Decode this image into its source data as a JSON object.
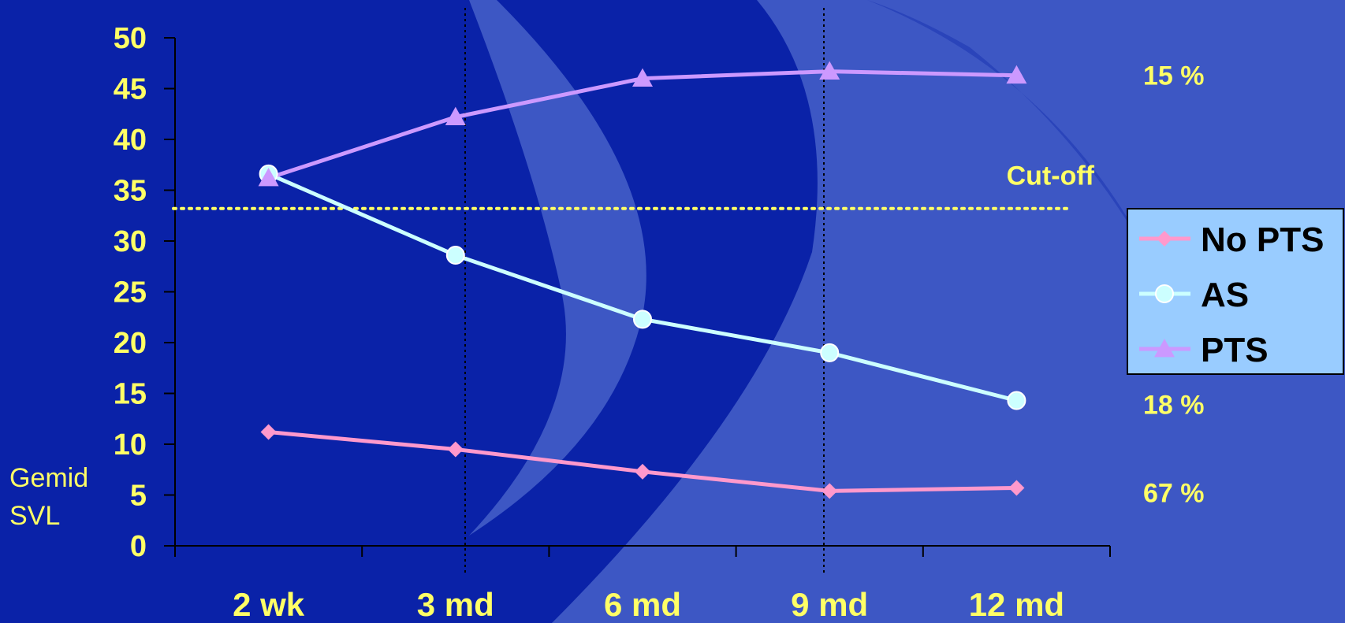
{
  "chart_data": {
    "type": "line",
    "categories": [
      "2 wk",
      "3 md",
      "6 md",
      "9 md",
      "12 md"
    ],
    "ylim": [
      0,
      50
    ],
    "yticks": [
      0,
      5,
      10,
      15,
      20,
      25,
      30,
      35,
      40,
      45,
      50
    ],
    "ylabel": [
      "Gemid",
      "SVL"
    ],
    "series": [
      {
        "name": "No PTS",
        "values": [
          11.2,
          9.5,
          7.3,
          5.4,
          5.7
        ],
        "color": "#ff99cc",
        "marker": "diamond"
      },
      {
        "name": "AS",
        "values": [
          36.6,
          28.6,
          22.3,
          19.0,
          14.3
        ],
        "color": "#ccffff",
        "marker": "circle"
      },
      {
        "name": "PTS",
        "values": [
          36.2,
          42.2,
          46.0,
          46.7,
          46.3
        ],
        "color": "#cc99ff",
        "marker": "triangle"
      }
    ],
    "reference_line": {
      "label": "Cut-off",
      "value": 33.2,
      "color": "#ffff66",
      "style": "dotted"
    },
    "annotations": [
      {
        "text": "15 %",
        "series": "PTS"
      },
      {
        "text": "18 %",
        "series": "AS"
      },
      {
        "text": "67 %",
        "series": "No PTS"
      }
    ],
    "vertical_markers": [
      "3 md",
      "9 md"
    ],
    "legend": {
      "position": "right",
      "background": "#99ccff"
    }
  },
  "theme": {
    "background": "#0a22a8",
    "arc_color": "#3d57c4",
    "text_color": "#ffff66",
    "axis_color": "#000000"
  }
}
